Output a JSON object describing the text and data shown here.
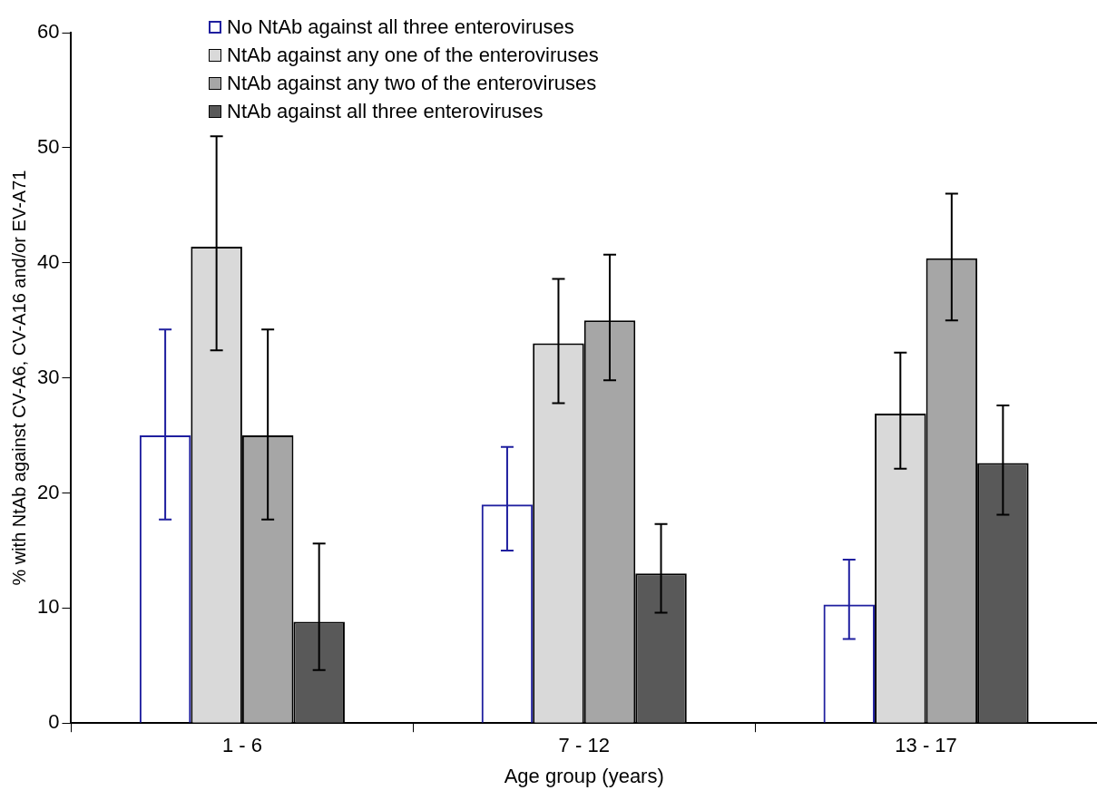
{
  "chart_data": {
    "type": "bar",
    "xlabel": "Age group (years)",
    "ylabel": "% with NtAb against CV-A6, CV-A16 and/or EV-A71",
    "categories": [
      "1 - 6",
      "7 - 12",
      "13 - 17"
    ],
    "series": [
      {
        "name": "No NtAb against all three enteroviruses",
        "color": "#1f1f9f",
        "values": [
          25,
          19,
          10.3
        ],
        "errors": [
          [
            17.7,
            34.2
          ],
          [
            15.0,
            24.0
          ],
          [
            7.3,
            14.2
          ]
        ]
      },
      {
        "name": "NtAb against any one of the enteroviruses",
        "color": "#d9d9d9",
        "values": [
          41.4,
          33,
          26.9
        ],
        "errors": [
          [
            32.4,
            51.0
          ],
          [
            27.8,
            38.6
          ],
          [
            22.1,
            32.2
          ]
        ]
      },
      {
        "name": "NtAb against any two of the enteroviruses",
        "color": "#a6a6a6",
        "values": [
          25,
          35,
          40.4
        ],
        "errors": [
          [
            17.7,
            34.2
          ],
          [
            29.8,
            40.7
          ],
          [
            35.0,
            46.0
          ]
        ]
      },
      {
        "name": "NtAb against all three enteroviruses",
        "color": "#595959",
        "values": [
          8.8,
          13,
          22.6
        ],
        "errors": [
          [
            4.6,
            15.6
          ],
          [
            9.6,
            17.3
          ],
          [
            18.1,
            27.6
          ]
        ]
      }
    ],
    "ylim": [
      0,
      60
    ],
    "yticks": [
      0,
      10,
      20,
      30,
      40,
      50,
      60
    ],
    "grid": false,
    "legend": "top"
  }
}
